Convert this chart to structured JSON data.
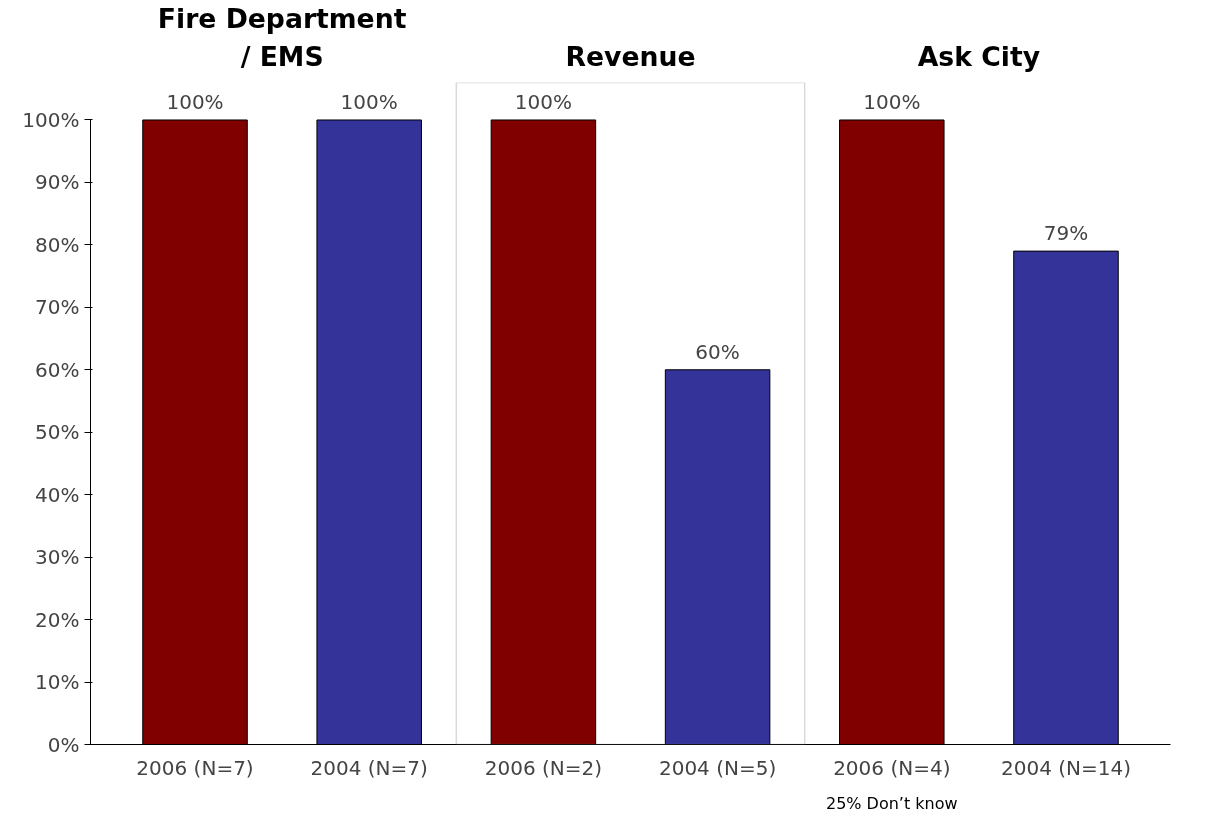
{
  "chart_data": {
    "type": "bar",
    "categories": [
      "2006 (N=7)",
      "2004 (N=7)",
      "2006 (N=2)",
      "2004 (N=5)",
      "2006 (N=4)",
      "2004 (N=14)"
    ],
    "values": [
      100,
      100,
      100,
      60,
      100,
      79
    ],
    "colors": [
      "#800000",
      "#333399",
      "#800000",
      "#333399",
      "#800000",
      "#333399"
    ],
    "value_labels": [
      "100%",
      "100%",
      "100%",
      "60%",
      "100%",
      "79%"
    ],
    "ylim": [
      0,
      100
    ],
    "yticks": [
      {
        "value": 0,
        "label": "0%"
      },
      {
        "value": 10,
        "label": "10%"
      },
      {
        "value": 20,
        "label": "20%"
      },
      {
        "value": 30,
        "label": "30%"
      },
      {
        "value": 40,
        "label": "40%"
      },
      {
        "value": 50,
        "label": "50%"
      },
      {
        "value": 60,
        "label": "60%"
      },
      {
        "value": 70,
        "label": "70%"
      },
      {
        "value": 80,
        "label": "80%"
      },
      {
        "value": 90,
        "label": "90%"
      },
      {
        "value": 100,
        "label": "100%"
      }
    ],
    "grid": false,
    "annotations": [
      "Fire Department\n/ EMS",
      "Revenue",
      "Ask City",
      "25% Don’t know"
    ]
  }
}
